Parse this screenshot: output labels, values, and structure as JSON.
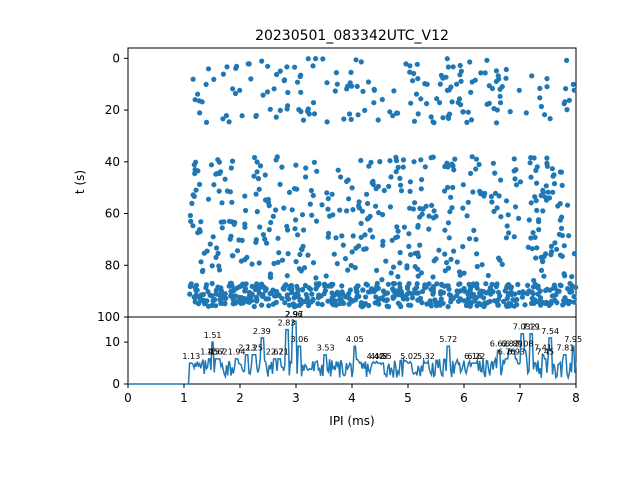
{
  "chart_data": [
    {
      "type": "scatter",
      "title": "20230501_083342UTC_V12",
      "xlabel": "",
      "ylabel": "t (s)",
      "xlim": [
        0,
        8
      ],
      "ylim": [
        100,
        -4
      ],
      "y_inverted": true,
      "y_ticks": [
        "0",
        "20",
        "40",
        "60",
        "80",
        "100"
      ],
      "marker_color": "#1f77b4",
      "points_note": "",
      "x_range_of_points": [
        1.1,
        8.0
      ],
      "t_bands": [
        {
          "t_start": 0,
          "t_end": 25,
          "density": "sparse"
        },
        {
          "t_start": 38,
          "t_end": 86,
          "density": "medium"
        },
        {
          "t_start": 87,
          "t_end": 96,
          "density": "dense"
        }
      ]
    },
    {
      "type": "line",
      "xlabel": "IPI (ms)",
      "ylabel": "",
      "xlim": [
        0,
        8
      ],
      "ylim": [
        0,
        16
      ],
      "x_ticks": [
        "0",
        "1",
        "2",
        "3",
        "4",
        "5",
        "6",
        "7",
        "8"
      ],
      "y_ticks": [
        "0",
        "10"
      ],
      "line_color": "#1f77b4",
      "peak_labels": [
        {
          "x": 1.13,
          "y": 6,
          "label": "1.13"
        },
        {
          "x": 1.45,
          "y": 7,
          "label": "1.45"
        },
        {
          "x": 1.51,
          "y": 11,
          "label": "1.51"
        },
        {
          "x": 1.57,
          "y": 7,
          "label": "1.57"
        },
        {
          "x": 1.62,
          "y": 7,
          "label": "1.62"
        },
        {
          "x": 1.94,
          "y": 7,
          "label": "1.94"
        },
        {
          "x": 2.13,
          "y": 8,
          "label": "2.13"
        },
        {
          "x": 2.25,
          "y": 8,
          "label": "2.25"
        },
        {
          "x": 2.39,
          "y": 12,
          "label": "2.39"
        },
        {
          "x": 2.62,
          "y": 7,
          "label": "2.62"
        },
        {
          "x": 2.71,
          "y": 7,
          "label": "2.71"
        },
        {
          "x": 2.83,
          "y": 14,
          "label": "2.83"
        },
        {
          "x": 2.96,
          "y": 16,
          "label": "2.96"
        },
        {
          "x": 2.97,
          "y": 16,
          "label": "2.97"
        },
        {
          "x": 3.06,
          "y": 10,
          "label": "3.06"
        },
        {
          "x": 3.53,
          "y": 8,
          "label": "3.53"
        },
        {
          "x": 4.05,
          "y": 10,
          "label": "4.05"
        },
        {
          "x": 4.42,
          "y": 6,
          "label": "4.42"
        },
        {
          "x": 4.48,
          "y": 6,
          "label": "4.48"
        },
        {
          "x": 4.55,
          "y": 6,
          "label": "4.55"
        },
        {
          "x": 5.02,
          "y": 6,
          "label": "5.02"
        },
        {
          "x": 5.32,
          "y": 6,
          "label": "5.32"
        },
        {
          "x": 5.72,
          "y": 10,
          "label": "5.72"
        },
        {
          "x": 6.16,
          "y": 6,
          "label": "6.16"
        },
        {
          "x": 6.22,
          "y": 6,
          "label": "6.22"
        },
        {
          "x": 6.62,
          "y": 9,
          "label": "6.62"
        },
        {
          "x": 6.76,
          "y": 7,
          "label": "6.76"
        },
        {
          "x": 6.82,
          "y": 9,
          "label": "6.82"
        },
        {
          "x": 6.89,
          "y": 9,
          "label": "6.89"
        },
        {
          "x": 6.93,
          "y": 7,
          "label": "6.93"
        },
        {
          "x": 7.03,
          "y": 13,
          "label": "7.03"
        },
        {
          "x": 7.08,
          "y": 9,
          "label": "7.08"
        },
        {
          "x": 7.19,
          "y": 13,
          "label": "7.19"
        },
        {
          "x": 7.21,
          "y": 13,
          "label": "7.21"
        },
        {
          "x": 7.41,
          "y": 8,
          "label": "7.41"
        },
        {
          "x": 7.45,
          "y": 7,
          "label": "7.45"
        },
        {
          "x": 7.54,
          "y": 12,
          "label": "7.54"
        },
        {
          "x": 7.81,
          "y": 8,
          "label": "7.81"
        },
        {
          "x": 7.95,
          "y": 10,
          "label": "7.95"
        }
      ]
    }
  ]
}
